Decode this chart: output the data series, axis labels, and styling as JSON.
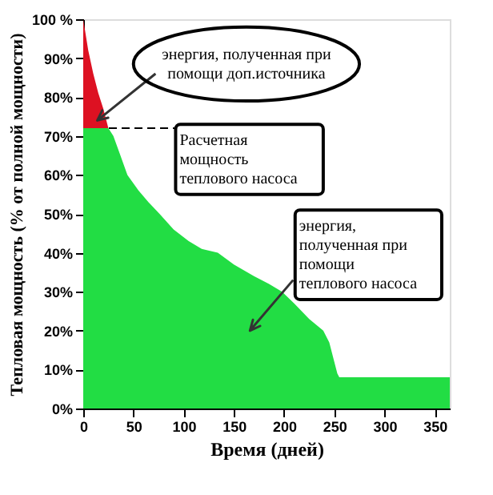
{
  "chart_data": {
    "type": "area",
    "stacked": true,
    "x": [
      0,
      5,
      10,
      15,
      20,
      25,
      30,
      37,
      44,
      55,
      65,
      76,
      90,
      105,
      118,
      134,
      150,
      170,
      185,
      198,
      210,
      225,
      239,
      245,
      250,
      253,
      255,
      365
    ],
    "series": [
      {
        "color": "#22dd44",
        "values": [
          72,
          72,
          72,
          72,
          72,
          72,
          70,
          65,
          60,
          56,
          53,
          50,
          46,
          43,
          41,
          40,
          37,
          34,
          32,
          30,
          27,
          23,
          20,
          17,
          12,
          9,
          8,
          8
        ]
      },
      {
        "color": "#dd1122",
        "values": [
          28,
          20,
          14,
          9,
          5,
          0,
          null,
          null,
          null,
          null,
          null,
          null,
          null,
          null,
          null,
          null,
          null,
          null,
          null,
          null,
          null,
          null,
          null,
          null,
          null,
          null,
          null,
          null
        ]
      }
    ],
    "xlabel": "Время (дней)",
    "ylabel": "Тепловая мощность (% от полной мощности)",
    "xlim": [
      0,
      365
    ],
    "xticks": [
      0,
      50,
      100,
      150,
      200,
      250,
      300,
      350
    ],
    "ylim": [
      0,
      100
    ],
    "yticks": [
      {
        "value": 0,
        "label": "0%"
      },
      {
        "value": 10,
        "label": "10%"
      },
      {
        "value": 20,
        "label": "20%"
      },
      {
        "value": 30,
        "label": "30%"
      },
      {
        "value": 40,
        "label": "40%"
      },
      {
        "value": 50,
        "label": "50%"
      },
      {
        "value": 60,
        "label": "60%"
      },
      {
        "value": 70,
        "label": "70%"
      },
      {
        "value": 80,
        "label": "80%"
      },
      {
        "value": 90,
        "label": "90%"
      },
      {
        "value": 100,
        "label": "100 %"
      }
    ],
    "ref_lines": [
      {
        "axis": "y",
        "value": 72,
        "label": "Расчетная мощность теплового насоса",
        "line_style": "dashed",
        "color": "#000000"
      }
    ],
    "annotations": [
      {
        "text": "энергия, полученная при помощи доп.источника",
        "x": 14,
        "y": 74
      },
      "энергия, полученная при помощи теплового насоса"
    ],
    "grid": false
  }
}
